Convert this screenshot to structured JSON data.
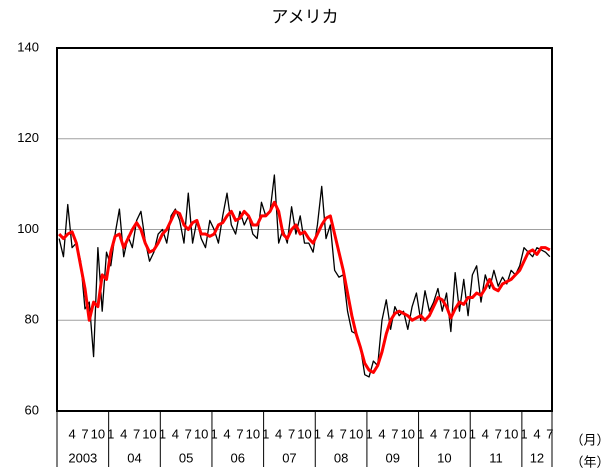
{
  "chart_data": {
    "type": "line",
    "title": "アメリカ",
    "ylim": [
      60,
      140
    ],
    "yticks": [
      60,
      80,
      100,
      120,
      140
    ],
    "grid": true,
    "categories": [
      null,
      null,
      null,
      "4",
      null,
      null,
      "7",
      null,
      null,
      "10",
      null,
      null,
      "1",
      null,
      null,
      "4",
      null,
      null,
      "7",
      null,
      null,
      "10",
      null,
      null,
      "1",
      null,
      null,
      "4",
      null,
      null,
      "7",
      null,
      null,
      "10",
      null,
      null,
      "1",
      null,
      null,
      "4",
      null,
      null,
      "7",
      null,
      null,
      "10",
      null,
      null,
      "1",
      null,
      null,
      "4",
      null,
      null,
      "7",
      null,
      null,
      "10",
      null,
      null,
      "1",
      null,
      null,
      "4",
      null,
      null,
      "7",
      null,
      null,
      "10",
      null,
      null,
      "1",
      null,
      null,
      "4",
      null,
      null,
      "7",
      null,
      null,
      "10",
      null,
      null,
      "1",
      null,
      null,
      "4",
      null,
      null,
      "7",
      null,
      null,
      "10",
      null,
      null,
      "1",
      null,
      null,
      "4",
      null,
      null,
      "7",
      null,
      null,
      "10",
      null,
      null,
      "1",
      null,
      null,
      "4",
      null,
      null,
      "7"
    ],
    "years": [
      "2003",
      "04",
      "05",
      "06",
      "07",
      "08",
      "09",
      "10",
      "11",
      "12"
    ],
    "month_unit": "（月）",
    "year_unit": "（年）",
    "series": [
      {
        "color": "#000000",
        "width": 1.3,
        "values": [
          98,
          94,
          105.5,
          96,
          97,
          93,
          82.5,
          84,
          72,
          96,
          82,
          95,
          92,
          99,
          104.5,
          94,
          98.5,
          96,
          102,
          104,
          97.5,
          93,
          95,
          99,
          100,
          97,
          103,
          104.5,
          102,
          97,
          108,
          97,
          102,
          98,
          96,
          102,
          100,
          97,
          103,
          108,
          101,
          99,
          104,
          101,
          103,
          99,
          98,
          106,
          103,
          104,
          112,
          97,
          100,
          97,
          105,
          99,
          103,
          97,
          97,
          95,
          101,
          109.5,
          98,
          101,
          91,
          89.5,
          90,
          82,
          77.5,
          77,
          74,
          68,
          67.5,
          71,
          70,
          80,
          84.5,
          78,
          83,
          81,
          82,
          78,
          83,
          86,
          80,
          86.5,
          82,
          84,
          87,
          82,
          86,
          77.5,
          90.5,
          82,
          89,
          81,
          90,
          92,
          84,
          90,
          87,
          91,
          87.5,
          89.5,
          88,
          91,
          90,
          92,
          96,
          95,
          94,
          96,
          95.5,
          95,
          94
        ]
      },
      {
        "color": "#ff0000",
        "width": 3,
        "values": [
          99,
          98,
          99,
          99.5,
          97,
          92,
          87,
          80,
          84,
          83,
          90,
          89,
          95,
          98.5,
          99,
          96,
          98,
          100,
          101.5,
          100,
          97,
          95,
          95.5,
          97,
          99,
          100,
          102,
          104,
          103.5,
          101,
          100,
          101.5,
          102,
          99,
          99,
          98.5,
          99,
          101,
          101.5,
          103,
          104,
          102,
          102.5,
          104,
          103,
          101,
          101,
          103,
          103,
          104,
          106,
          104,
          99,
          98,
          100,
          101,
          99,
          99.5,
          98,
          97,
          99,
          101,
          102.5,
          103,
          99,
          95,
          91,
          86,
          81,
          77,
          74,
          70.5,
          69,
          68.5,
          70,
          73,
          77,
          80,
          81.5,
          82,
          81.5,
          81,
          80,
          80.5,
          81,
          80,
          81,
          83,
          85,
          84.5,
          83,
          80.5,
          82.5,
          84,
          83.5,
          85,
          85,
          86,
          85.5,
          87,
          89,
          87,
          86.5,
          88,
          88.5,
          89,
          90,
          91,
          93,
          95,
          95.5,
          94.5,
          96,
          96,
          95.5
        ]
      }
    ]
  }
}
